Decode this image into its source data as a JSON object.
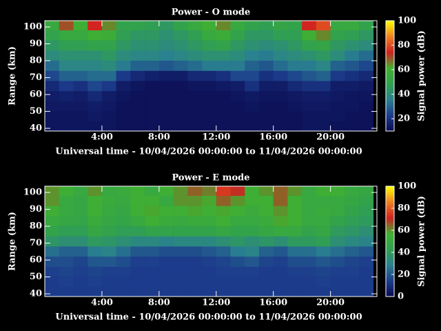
{
  "chart_data": [
    {
      "type": "heatmap",
      "title": "Power - O mode",
      "x_label": "Universal time - 10/04/2026 00:00:00 to 11/04/2026 00:00:00",
      "y_label": "Range (km)",
      "colorbar_label": "Signal power (dB)",
      "xlim": [
        0,
        23.25
      ],
      "ylim": [
        38.4,
        103.7
      ],
      "xticks": [
        {
          "value": 4,
          "label": "4:00"
        },
        {
          "value": 8,
          "label": "8:00"
        },
        {
          "value": 12,
          "label": "12:00"
        },
        {
          "value": 16,
          "label": "16:00"
        },
        {
          "value": 20,
          "label": "20:00"
        }
      ],
      "yticks": [
        40,
        50,
        60,
        70,
        80,
        90,
        100
      ],
      "zlim": [
        10,
        100
      ],
      "zticks": [
        20,
        40,
        60,
        80,
        100
      ],
      "colormap": [
        "#0a0a50",
        "#1c3c8c",
        "#2a8090",
        "#30a050",
        "#40b030",
        "#d02020",
        "#f08020",
        "#ffff00"
      ],
      "x_edges": [
        0,
        1,
        2,
        3,
        4,
        5,
        6,
        7,
        8,
        9,
        10,
        11,
        12,
        13,
        14,
        15,
        16,
        17,
        18,
        19,
        20,
        21,
        22,
        23
      ],
      "y_edges": [
        104,
        98,
        92,
        86,
        80,
        74,
        68,
        62,
        56,
        50,
        44,
        38.4
      ],
      "z": [
        [
          55,
          70,
          60,
          75,
          65,
          50,
          50,
          48,
          45,
          50,
          55,
          60,
          65,
          55,
          50,
          48,
          52,
          50,
          75,
          80,
          55,
          55,
          50
        ],
        [
          50,
          55,
          55,
          60,
          58,
          48,
          45,
          45,
          42,
          45,
          48,
          55,
          58,
          50,
          45,
          45,
          48,
          48,
          60,
          65,
          50,
          48,
          45
        ],
        [
          45,
          48,
          48,
          50,
          50,
          45,
          42,
          42,
          40,
          42,
          45,
          48,
          50,
          45,
          42,
          40,
          42,
          45,
          50,
          52,
          45,
          42,
          40
        ],
        [
          40,
          42,
          42,
          42,
          45,
          40,
          38,
          38,
          36,
          38,
          40,
          42,
          42,
          40,
          36,
          35,
          38,
          40,
          42,
          45,
          40,
          35,
          32
        ],
        [
          32,
          38,
          38,
          38,
          40,
          35,
          30,
          30,
          28,
          30,
          32,
          35,
          35,
          35,
          30,
          28,
          32,
          35,
          35,
          38,
          30,
          28,
          25
        ],
        [
          25,
          30,
          30,
          32,
          32,
          22,
          18,
          16,
          15,
          15,
          18,
          18,
          20,
          25,
          25,
          20,
          22,
          25,
          28,
          30,
          22,
          20,
          18
        ],
        [
          18,
          22,
          20,
          25,
          22,
          15,
          13,
          12,
          12,
          12,
          13,
          13,
          14,
          15,
          20,
          15,
          15,
          18,
          20,
          20,
          15,
          15,
          14
        ],
        [
          15,
          16,
          15,
          18,
          15,
          13,
          12,
          12,
          12,
          12,
          12,
          12,
          12,
          13,
          14,
          13,
          13,
          14,
          15,
          15,
          14,
          13,
          13
        ],
        [
          14,
          14,
          14,
          15,
          14,
          12,
          12,
          12,
          12,
          12,
          12,
          12,
          12,
          12,
          13,
          12,
          12,
          13,
          14,
          14,
          13,
          13,
          12
        ],
        [
          13,
          13,
          13,
          14,
          13,
          12,
          12,
          12,
          12,
          12,
          12,
          12,
          12,
          12,
          12,
          12,
          12,
          12,
          13,
          13,
          13,
          12,
          12
        ],
        [
          13,
          13,
          13,
          13,
          13,
          12,
          12,
          12,
          12,
          12,
          12,
          12,
          12,
          12,
          12,
          12,
          12,
          12,
          13,
          13,
          12,
          12,
          12
        ]
      ]
    },
    {
      "type": "heatmap",
      "title": "Power - E mode",
      "x_label": "Universal time - 10/04/2026 00:00:00 to 11/04/2026 00:00:00",
      "y_label": "Range (km)",
      "colorbar_label": "Signal power (dB)",
      "xlim": [
        0,
        23.25
      ],
      "ylim": [
        38.4,
        103.7
      ],
      "xticks": [
        {
          "value": 4,
          "label": "4:00"
        },
        {
          "value": 8,
          "label": "8:00"
        },
        {
          "value": 12,
          "label": "12:00"
        },
        {
          "value": 16,
          "label": "16:00"
        },
        {
          "value": 20,
          "label": "20:00"
        }
      ],
      "yticks": [
        40,
        50,
        60,
        70,
        80,
        90,
        100
      ],
      "zlim": [
        0,
        100
      ],
      "zticks": [
        0,
        20,
        40,
        60,
        80,
        100
      ],
      "colormap": [
        "#0a0a50",
        "#1c3c8c",
        "#2a8090",
        "#30a050",
        "#40b030",
        "#d02020",
        "#f08020",
        "#ffff00"
      ],
      "x_edges": [
        0,
        1,
        2,
        3,
        4,
        5,
        6,
        7,
        8,
        9,
        10,
        11,
        12,
        13,
        14,
        15,
        16,
        17,
        18,
        19,
        20,
        21,
        22,
        23
      ],
      "y_edges": [
        104,
        98,
        92,
        86,
        80,
        74,
        68,
        62,
        56,
        50,
        44,
        38.4
      ],
      "z": [
        [
          60,
          55,
          50,
          60,
          50,
          52,
          55,
          50,
          55,
          60,
          65,
          62,
          75,
          70,
          55,
          60,
          65,
          60,
          50,
          55,
          55,
          50,
          48
        ],
        [
          60,
          50,
          48,
          55,
          52,
          50,
          55,
          55,
          50,
          60,
          60,
          58,
          65,
          60,
          55,
          55,
          65,
          55,
          50,
          50,
          50,
          48,
          45
        ],
        [
          55,
          50,
          48,
          55,
          50,
          48,
          55,
          58,
          55,
          55,
          58,
          55,
          58,
          55,
          52,
          55,
          60,
          55,
          50,
          52,
          50,
          45,
          42
        ],
        [
          50,
          48,
          46,
          52,
          48,
          46,
          50,
          55,
          52,
          50,
          52,
          52,
          55,
          50,
          50,
          52,
          58,
          55,
          50,
          50,
          45,
          42,
          40
        ],
        [
          45,
          42,
          42,
          48,
          45,
          42,
          42,
          45,
          45,
          45,
          45,
          45,
          48,
          45,
          45,
          48,
          50,
          50,
          45,
          48,
          40,
          38,
          35
        ],
        [
          38,
          35,
          35,
          40,
          38,
          35,
          32,
          32,
          30,
          32,
          32,
          32,
          35,
          38,
          35,
          38,
          35,
          40,
          40,
          42,
          35,
          32,
          30
        ],
        [
          25,
          22,
          22,
          28,
          30,
          25,
          20,
          20,
          18,
          18,
          18,
          20,
          22,
          28,
          30,
          22,
          20,
          25,
          25,
          28,
          25,
          22,
          20
        ],
        [
          18,
          18,
          16,
          20,
          20,
          18,
          15,
          15,
          14,
          14,
          14,
          15,
          16,
          18,
          20,
          16,
          15,
          18,
          18,
          20,
          18,
          16,
          15
        ],
        [
          15,
          16,
          15,
          16,
          15,
          15,
          14,
          14,
          14,
          14,
          14,
          14,
          15,
          15,
          15,
          14,
          14,
          15,
          15,
          16,
          15,
          15,
          14
        ],
        [
          14,
          15,
          14,
          15,
          14,
          14,
          14,
          14,
          14,
          14,
          14,
          14,
          14,
          14,
          14,
          14,
          14,
          14,
          14,
          15,
          14,
          14,
          14
        ],
        [
          14,
          14,
          14,
          14,
          14,
          14,
          14,
          14,
          14,
          14,
          14,
          14,
          14,
          14,
          14,
          14,
          14,
          14,
          14,
          14,
          14,
          14,
          14
        ]
      ]
    }
  ]
}
